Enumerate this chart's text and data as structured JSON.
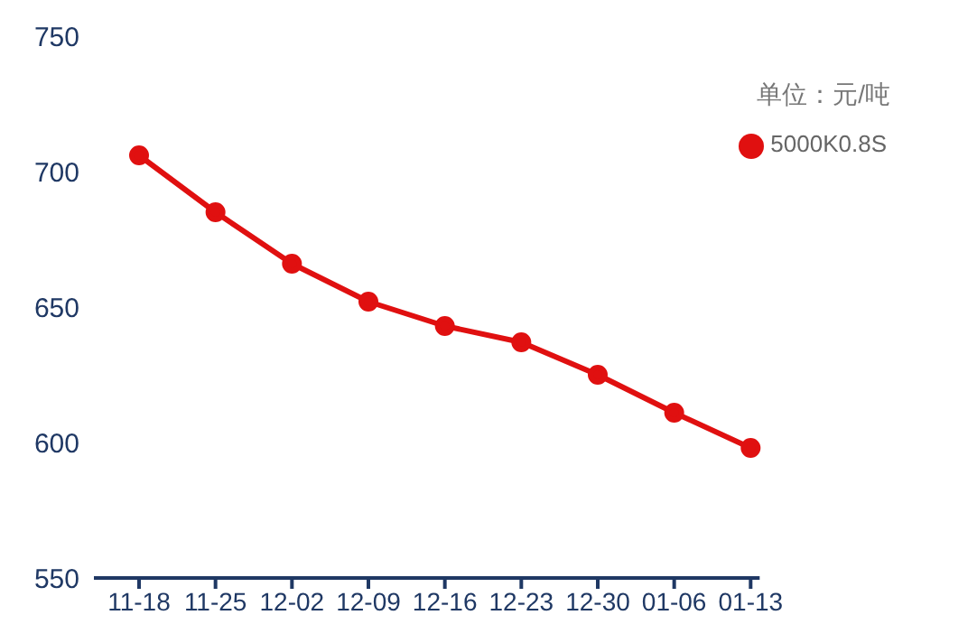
{
  "chart_data": {
    "type": "line",
    "categories": [
      "11-18",
      "11-25",
      "12-02",
      "12-09",
      "12-16",
      "12-23",
      "12-30",
      "01-06",
      "01-13"
    ],
    "series": [
      {
        "name": "5000K0.8S",
        "color": "#e01010",
        "values": [
          706,
          685,
          666,
          652,
          643,
          637,
          625,
          611,
          598
        ]
      }
    ],
    "ylim": [
      550,
      750
    ],
    "yticks": [
      550,
      600,
      650,
      700,
      750
    ],
    "grid": false,
    "legend": "top right",
    "marker": "circle",
    "line_style": "solid",
    "annotations": [
      "单位：元/吨"
    ]
  }
}
